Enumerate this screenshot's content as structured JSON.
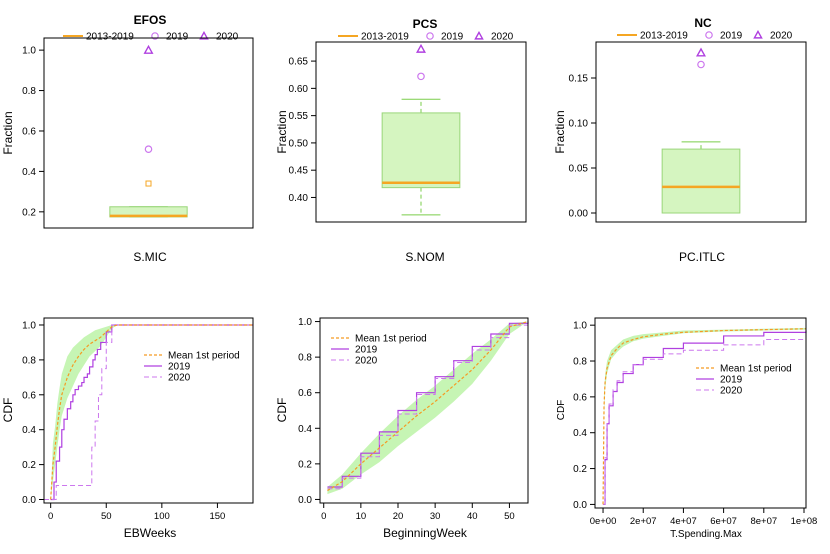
{
  "colors": {
    "box_fill": "#d5f5c0",
    "box_stroke": "#9ad67a",
    "whisker": "#7acd4a",
    "median": "#f5a623",
    "purple": "#b040e0",
    "violet": "#cc77ee",
    "mean_line": "#f59a23",
    "band": "#c6f5b4"
  },
  "legend_box": {
    "period": "2013-2019",
    "y2019": "2019",
    "y2020": "2020"
  },
  "legend_cdf": {
    "mean": "Mean 1st period",
    "y2019": "2019",
    "y2020": "2020"
  },
  "chart_data": [
    {
      "id": "efos",
      "type": "box",
      "title": "EFOS",
      "xlabel": "S.MIC",
      "ylabel": "Fraction",
      "ylim": [
        0.12,
        1.06
      ],
      "yticks": [
        0.2,
        0.4,
        0.6,
        0.8,
        1.0
      ],
      "ytick_labels": [
        "0.2",
        "0.4",
        "0.6",
        "0.8",
        "1.0"
      ],
      "box": {
        "whisker_low": 0.175,
        "q1": 0.175,
        "median": 0.18,
        "q3": 0.225,
        "whisker_high": 0.225
      },
      "outliers": [
        0.34
      ],
      "point_2019": 0.51,
      "point_2020": 1.0
    },
    {
      "id": "pcs",
      "type": "box",
      "title": "PCS",
      "xlabel": "S.NOM",
      "ylabel": "Fraction",
      "ylim": [
        0.355,
        0.685
      ],
      "yticks": [
        0.4,
        0.45,
        0.5,
        0.55,
        0.6,
        0.65
      ],
      "ytick_labels": [
        "0.40",
        "0.45",
        "0.50",
        "0.55",
        "0.60",
        "0.65"
      ],
      "box": {
        "whisker_low": 0.368,
        "q1": 0.418,
        "median": 0.427,
        "q3": 0.555,
        "whisker_high": 0.58
      },
      "outliers": [],
      "point_2019": 0.622,
      "point_2020": 0.672
    },
    {
      "id": "nc",
      "type": "box",
      "title": "NC",
      "xlabel": "PC.ITLC",
      "ylabel": "Fraction",
      "ylim": [
        -0.01,
        0.19
      ],
      "yticks": [
        0,
        0.05,
        0.1,
        0.15
      ],
      "ytick_labels": [
        "0.00",
        "0.05",
        "0.10",
        "0.15"
      ],
      "box": {
        "whisker_low": 0.0,
        "q1": 0.0,
        "median": 0.029,
        "q3": 0.071,
        "whisker_high": 0.079
      },
      "outliers": [],
      "point_2019": 0.165,
      "point_2020": 0.178
    },
    {
      "id": "ebweeks",
      "type": "line",
      "xlabel": "EBWeeks",
      "ylabel": "CDF",
      "xlim": [
        -6,
        182
      ],
      "ylim": [
        -0.02,
        1.04
      ],
      "xticks": [
        0,
        50,
        100,
        150
      ],
      "xtick_labels": [
        "0",
        "50",
        "100",
        "150"
      ],
      "yticks": [
        0,
        0.2,
        0.4,
        0.6,
        0.8,
        1.0
      ],
      "ytick_labels": [
        "0.0",
        "0.2",
        "0.4",
        "0.6",
        "0.8",
        "1.0"
      ],
      "series": [
        {
          "name": "Mean 1st period",
          "x": [
            0,
            2,
            4,
            6,
            8,
            10,
            15,
            20,
            25,
            30,
            35,
            40,
            45,
            50,
            55,
            60,
            80,
            120,
            182
          ],
          "y": [
            0,
            0.2,
            0.3,
            0.42,
            0.52,
            0.6,
            0.7,
            0.77,
            0.82,
            0.86,
            0.89,
            0.91,
            0.93,
            0.96,
            0.99,
            1.0,
            1.0,
            1.0,
            1.0
          ]
        },
        {
          "name": "band_low",
          "x": [
            0,
            2,
            4,
            6,
            8,
            10,
            15,
            20,
            25,
            30,
            35,
            40,
            45,
            50,
            55,
            60,
            182
          ],
          "y": [
            0,
            0.1,
            0.2,
            0.3,
            0.4,
            0.48,
            0.58,
            0.65,
            0.72,
            0.77,
            0.82,
            0.85,
            0.88,
            0.93,
            0.98,
            1.0,
            1.0
          ]
        },
        {
          "name": "band_high",
          "x": [
            0,
            2,
            4,
            6,
            8,
            10,
            15,
            20,
            25,
            30,
            35,
            40,
            45,
            50,
            55,
            60,
            182
          ],
          "y": [
            0,
            0.32,
            0.42,
            0.55,
            0.64,
            0.72,
            0.82,
            0.87,
            0.9,
            0.93,
            0.95,
            0.97,
            0.98,
            0.99,
            1.0,
            1.0,
            1.0
          ]
        },
        {
          "name": "2019",
          "x": [
            0,
            3,
            5,
            8,
            10,
            12,
            15,
            18,
            20,
            22,
            25,
            28,
            30,
            33,
            35,
            38,
            40,
            42,
            45,
            50,
            55,
            182
          ],
          "y": [
            0,
            0.1,
            0.22,
            0.3,
            0.4,
            0.46,
            0.52,
            0.56,
            0.6,
            0.63,
            0.65,
            0.67,
            0.7,
            0.72,
            0.76,
            0.8,
            0.83,
            0.86,
            0.9,
            0.96,
            1.0,
            1.0
          ]
        },
        {
          "name": "2020",
          "x": [
            -6,
            0,
            5,
            36,
            37,
            40,
            43,
            46,
            50,
            55,
            182
          ],
          "y": [
            0,
            0,
            0.08,
            0.08,
            0.3,
            0.45,
            0.6,
            0.75,
            0.9,
            1.0,
            1.0
          ]
        }
      ]
    },
    {
      "id": "beginningweek",
      "type": "line",
      "xlabel": "BeginningWeek",
      "ylabel": "CDF",
      "xlim": [
        -1,
        55
      ],
      "ylim": [
        -0.02,
        1.02
      ],
      "xticks": [
        0,
        10,
        20,
        30,
        40,
        50
      ],
      "xtick_labels": [
        "0",
        "10",
        "20",
        "30",
        "40",
        "50"
      ],
      "yticks": [
        0,
        0.2,
        0.4,
        0.6,
        0.8,
        1.0
      ],
      "ytick_labels": [
        "0.0",
        "0.2",
        "0.4",
        "0.6",
        "0.8",
        "1.0"
      ],
      "series": [
        {
          "name": "Mean 1st period",
          "x": [
            1,
            5,
            10,
            15,
            20,
            25,
            30,
            35,
            40,
            45,
            50,
            55
          ],
          "y": [
            0.05,
            0.1,
            0.2,
            0.29,
            0.38,
            0.47,
            0.55,
            0.64,
            0.73,
            0.84,
            0.97,
            1.0
          ]
        },
        {
          "name": "band_low",
          "x": [
            1,
            5,
            10,
            15,
            20,
            25,
            30,
            35,
            40,
            45,
            50,
            55
          ],
          "y": [
            0.03,
            0.06,
            0.14,
            0.21,
            0.3,
            0.38,
            0.46,
            0.55,
            0.65,
            0.78,
            0.93,
            1.0
          ]
        },
        {
          "name": "band_high",
          "x": [
            1,
            5,
            10,
            15,
            20,
            25,
            30,
            35,
            40,
            45,
            50,
            55
          ],
          "y": [
            0.07,
            0.14,
            0.26,
            0.37,
            0.47,
            0.56,
            0.64,
            0.73,
            0.82,
            0.9,
            0.99,
            1.0
          ]
        },
        {
          "name": "2019",
          "x": [
            1,
            5,
            10,
            15,
            20,
            25,
            30,
            35,
            40,
            45,
            50,
            55
          ],
          "y": [
            0.07,
            0.13,
            0.26,
            0.38,
            0.5,
            0.6,
            0.69,
            0.78,
            0.86,
            0.93,
            0.99,
            1.0
          ]
        },
        {
          "name": "2020",
          "x": [
            1,
            5,
            10,
            15,
            20,
            25,
            30,
            35,
            40,
            45,
            50,
            55
          ],
          "y": [
            0.06,
            0.12,
            0.24,
            0.36,
            0.48,
            0.59,
            0.68,
            0.77,
            0.84,
            0.91,
            0.98,
            1.0
          ]
        }
      ]
    },
    {
      "id": "tspending",
      "type": "line",
      "xlabel": "T.Spending.Max",
      "ylabel": "CDF",
      "xlim": [
        -4000000,
        101000000
      ],
      "ylim": [
        -0.02,
        1.04
      ],
      "xticks": [
        0,
        20000000,
        40000000,
        60000000,
        80000000,
        100000000
      ],
      "xtick_labels": [
        "0e+00",
        "2e+07",
        "4e+07",
        "6e+07",
        "8e+07",
        "1e+08"
      ],
      "yticks": [
        0,
        0.2,
        0.4,
        0.6,
        0.8,
        1.0
      ],
      "ytick_labels": [
        "0.0",
        "0.2",
        "0.4",
        "0.6",
        "0.8",
        "1.0"
      ],
      "series": [
        {
          "name": "Mean 1st period",
          "x": [
            0,
            500000,
            1000000,
            2000000,
            4000000,
            7000000,
            10000000,
            15000000,
            20000000,
            30000000,
            40000000,
            60000000,
            80000000,
            101000000
          ],
          "y": [
            0,
            0.55,
            0.68,
            0.76,
            0.83,
            0.87,
            0.9,
            0.92,
            0.935,
            0.95,
            0.96,
            0.97,
            0.975,
            0.98
          ]
        },
        {
          "name": "band_low",
          "x": [
            0,
            500000,
            1000000,
            2000000,
            4000000,
            7000000,
            10000000,
            15000000,
            20000000,
            30000000,
            40000000,
            60000000,
            80000000,
            101000000
          ],
          "y": [
            0,
            0.5,
            0.64,
            0.73,
            0.81,
            0.85,
            0.88,
            0.91,
            0.925,
            0.94,
            0.955,
            0.965,
            0.97,
            0.975
          ]
        },
        {
          "name": "band_high",
          "x": [
            0,
            500000,
            1000000,
            2000000,
            4000000,
            7000000,
            10000000,
            15000000,
            20000000,
            30000000,
            40000000,
            60000000,
            80000000,
            101000000
          ],
          "y": [
            0,
            0.6,
            0.72,
            0.8,
            0.86,
            0.89,
            0.92,
            0.94,
            0.95,
            0.96,
            0.97,
            0.975,
            0.98,
            0.985
          ]
        },
        {
          "name": "2019",
          "x": [
            0,
            1000000,
            2000000,
            3000000,
            5000000,
            7000000,
            10000000,
            15000000,
            20000000,
            30000000,
            40000000,
            60000000,
            80000000,
            101000000
          ],
          "y": [
            0,
            0.25,
            0.45,
            0.55,
            0.63,
            0.68,
            0.73,
            0.78,
            0.82,
            0.87,
            0.9,
            0.94,
            0.96,
            0.97
          ]
        },
        {
          "name": "2020",
          "x": [
            0,
            1000000,
            2000000,
            3000000,
            5000000,
            7000000,
            10000000,
            15000000,
            20000000,
            30000000,
            40000000,
            60000000,
            80000000,
            101000000
          ],
          "y": [
            0,
            0.26,
            0.46,
            0.56,
            0.64,
            0.69,
            0.74,
            0.78,
            0.81,
            0.84,
            0.86,
            0.89,
            0.92,
            0.95
          ]
        }
      ]
    }
  ]
}
